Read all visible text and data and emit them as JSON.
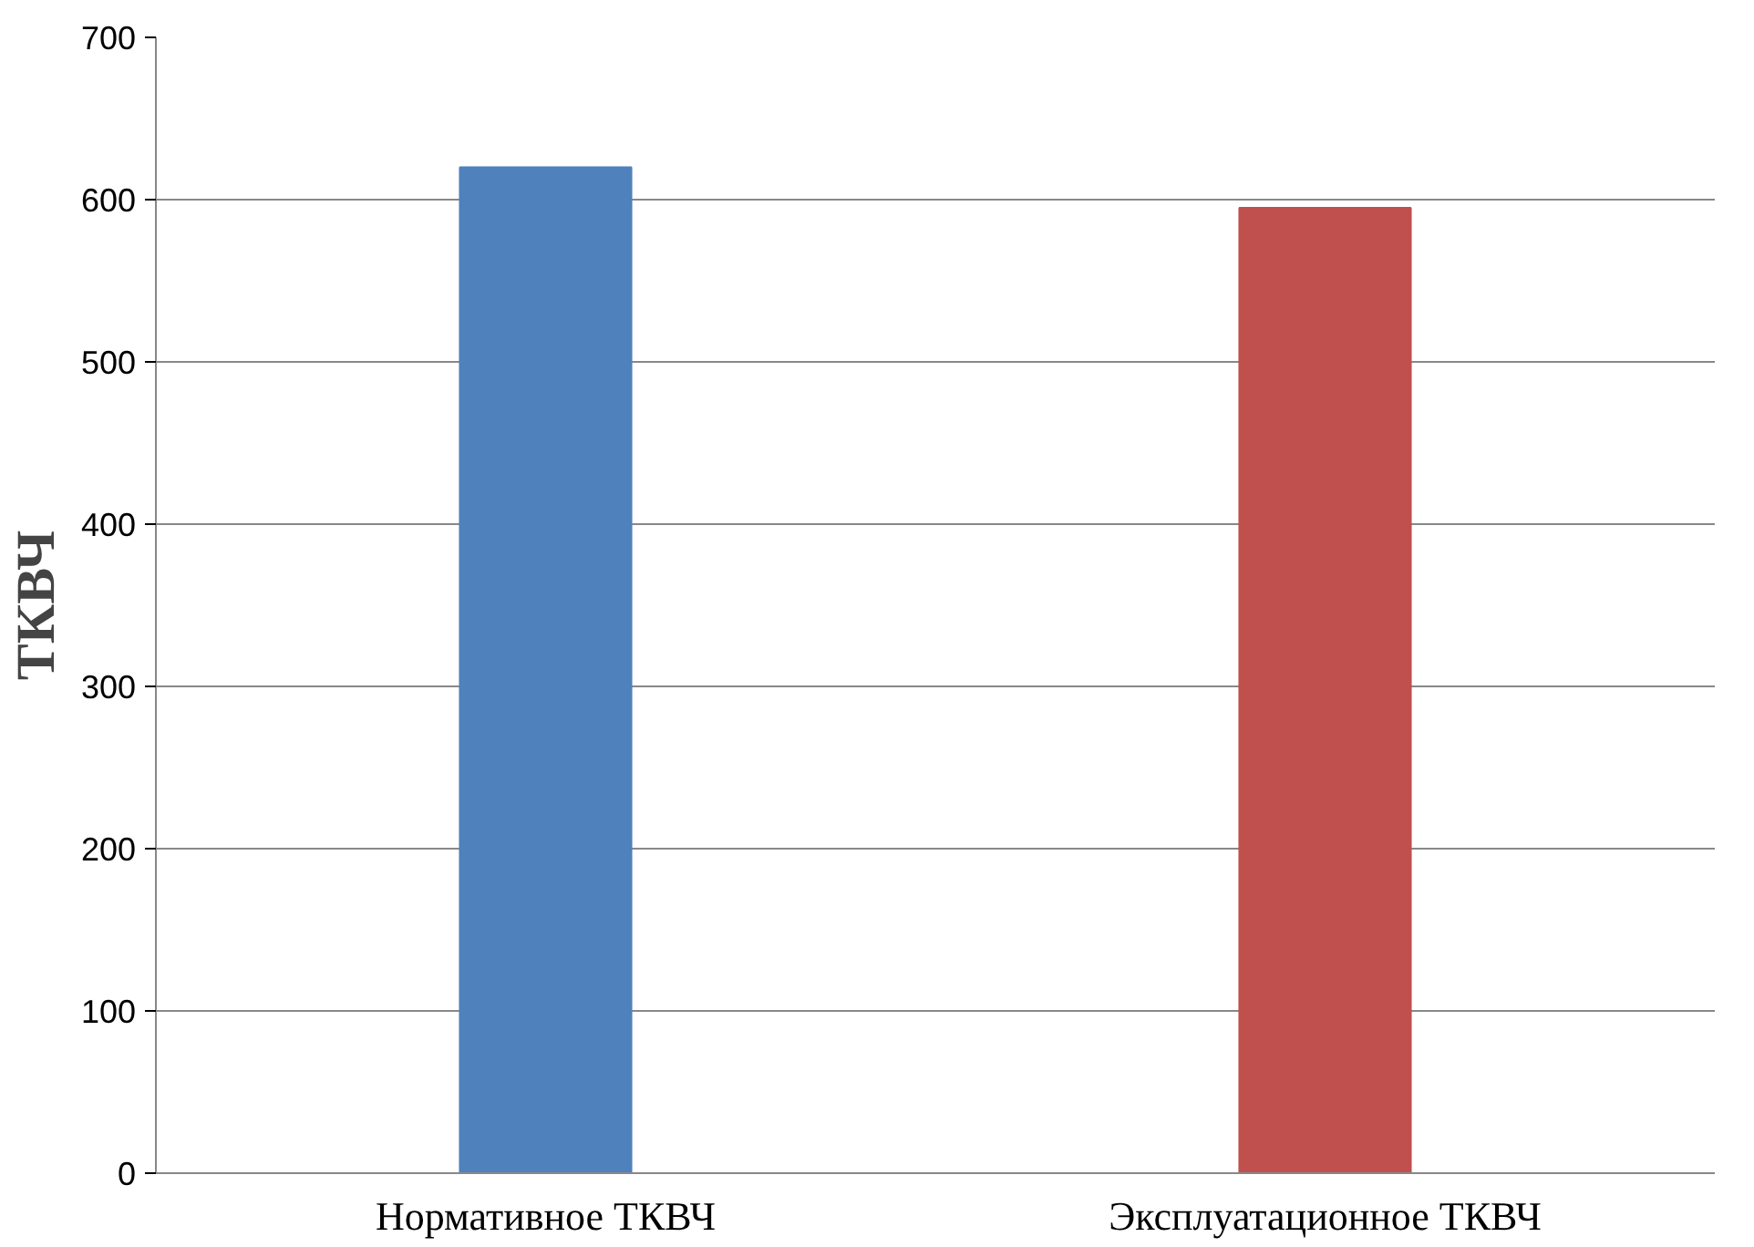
{
  "chart_data": {
    "type": "bar",
    "ylabel": "ТКВЧ",
    "categories": [
      "Нормативное ТКВЧ",
      "Эксплуатационное ТКВЧ"
    ],
    "values": [
      620,
      595
    ],
    "colors": [
      "#4f81bd",
      "#c0504d"
    ],
    "ylim": [
      0,
      700
    ],
    "yticks": [
      0,
      100,
      200,
      300,
      400,
      500,
      600,
      700
    ],
    "grid": "y"
  }
}
